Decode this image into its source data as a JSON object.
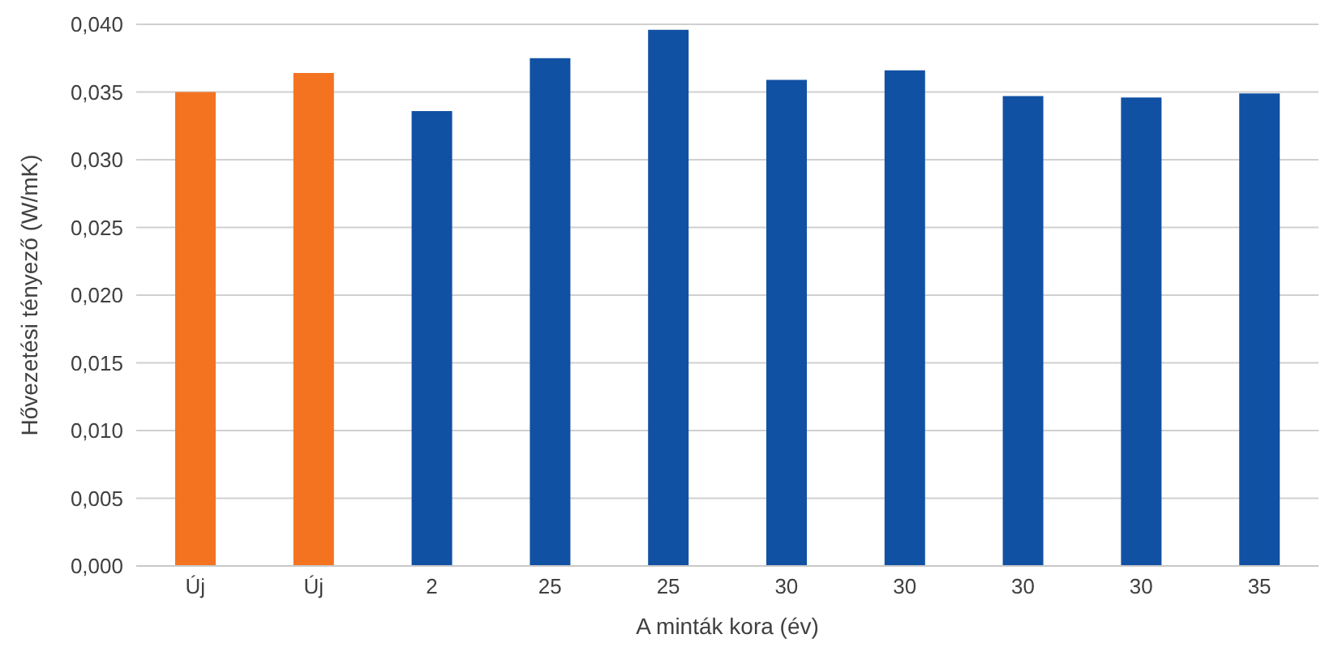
{
  "chart_data": {
    "type": "bar",
    "xlabel": "A minták kora (év)",
    "ylabel": "Hővezetési tényező (W/mK)",
    "categories": [
      "Új",
      "Új",
      "2",
      "25",
      "25",
      "30",
      "30",
      "30",
      "30",
      "35"
    ],
    "values": [
      0.035,
      0.0364,
      0.0336,
      0.0375,
      0.0396,
      0.0359,
      0.0366,
      0.0347,
      0.0346,
      0.0349
    ],
    "colors": [
      "#f47321",
      "#f47321",
      "#1151a3",
      "#1151a3",
      "#1151a3",
      "#1151a3",
      "#1151a3",
      "#1151a3",
      "#1151a3",
      "#1151a3"
    ],
    "ylim": [
      0,
      0.04
    ],
    "yticks": [
      {
        "value": 0,
        "label": "0,000"
      },
      {
        "value": 0.005,
        "label": "0,005"
      },
      {
        "value": 0.01,
        "label": "0,010"
      },
      {
        "value": 0.015,
        "label": "0,015"
      },
      {
        "value": 0.02,
        "label": "0,020"
      },
      {
        "value": 0.025,
        "label": "0,025"
      },
      {
        "value": 0.03,
        "label": "0,030"
      },
      {
        "value": 0.035,
        "label": "0,035"
      },
      {
        "value": 0.04,
        "label": "0,040"
      }
    ],
    "grid": "y"
  }
}
